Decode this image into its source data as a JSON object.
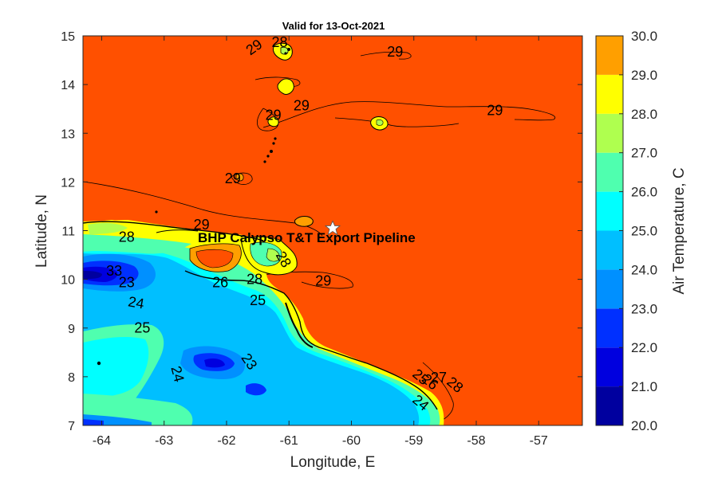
{
  "chart_data": {
    "type": "heatmap",
    "title": "Valid for 13-Oct-2021",
    "xlabel": "Longitude, E",
    "ylabel": "Latitude, N",
    "xlim": [
      -64.3,
      -56.3
    ],
    "ylim": [
      7,
      15
    ],
    "x_ticks": [
      "-64",
      "-63",
      "-62",
      "-61",
      "-60",
      "-59",
      "-58",
      "-57"
    ],
    "y_ticks": [
      "7",
      "8",
      "9",
      "10",
      "11",
      "12",
      "13",
      "14",
      "15"
    ],
    "colorbar": {
      "label": "Air Temperature, C",
      "range": [
        20,
        30
      ],
      "levels": [
        20,
        21,
        22,
        23,
        24,
        25,
        26,
        27,
        28,
        29,
        30
      ],
      "tick_labels": [
        "20.0",
        "21.0",
        "22.0",
        "23.0",
        "24.0",
        "25.0",
        "26.0",
        "27.0",
        "28.0",
        "29.0",
        "30.0"
      ],
      "colors": [
        "#00009f",
        "#0000df",
        "#0030ff",
        "#0090ff",
        "#00bfff",
        "#00ffff",
        "#4fffaf",
        "#afff4f",
        "#ffff00",
        "#ff9f00",
        "#ff5000"
      ]
    },
    "contour_labels": [
      {
        "text": "29",
        "lon": -61.55,
        "lat": 14.75,
        "rot": -35
      },
      {
        "text": "28",
        "lon": -61.15,
        "lat": 14.85,
        "rot": 0
      },
      {
        "text": "29",
        "lon": -59.3,
        "lat": 14.65,
        "rot": 0
      },
      {
        "text": "29",
        "lon": -60.8,
        "lat": 13.55,
        "rot": 0
      },
      {
        "text": "29",
        "lon": -61.25,
        "lat": 13.35,
        "rot": 0
      },
      {
        "text": "29",
        "lon": -57.7,
        "lat": 13.45,
        "rot": 0
      },
      {
        "text": "29",
        "lon": -61.9,
        "lat": 12.05,
        "rot": 0
      },
      {
        "text": "29",
        "lon": -62.4,
        "lat": 11.1,
        "rot": 0
      },
      {
        "text": "28",
        "lon": -63.6,
        "lat": 10.85,
        "rot": 0
      },
      {
        "text": "33",
        "lon": -63.8,
        "lat": 10.15,
        "rot": 0
      },
      {
        "text": "23",
        "lon": -63.6,
        "lat": 9.92,
        "rot": 0
      },
      {
        "text": "24",
        "lon": -63.45,
        "lat": 9.5,
        "rot": 10
      },
      {
        "text": "25",
        "lon": -63.35,
        "lat": 8.98,
        "rot": 0
      },
      {
        "text": "26",
        "lon": -62.1,
        "lat": 9.92,
        "rot": 0
      },
      {
        "text": "28",
        "lon": -61.55,
        "lat": 9.98,
        "rot": 0
      },
      {
        "text": "25",
        "lon": -61.5,
        "lat": 9.55,
        "rot": 0
      },
      {
        "text": "29",
        "lon": -60.45,
        "lat": 9.95,
        "rot": 0
      },
      {
        "text": "28",
        "lon": -61.1,
        "lat": 10.4,
        "rot": 60
      },
      {
        "text": "24",
        "lon": -62.8,
        "lat": 8.05,
        "rot": 75
      },
      {
        "text": "23",
        "lon": -61.65,
        "lat": 8.3,
        "rot": 55
      },
      {
        "text": "25",
        "lon": -58.9,
        "lat": 7.98,
        "rot": 40
      },
      {
        "text": "26",
        "lon": -58.75,
        "lat": 7.88,
        "rot": 40
      },
      {
        "text": "27",
        "lon": -58.6,
        "lat": 7.96,
        "rot": 0
      },
      {
        "text": "28",
        "lon": -58.35,
        "lat": 7.82,
        "rot": 40
      },
      {
        "text": "24",
        "lon": -58.9,
        "lat": 7.45,
        "rot": 40
      }
    ]
  },
  "annotation": {
    "label": "BHP Calypso T&T Export Pipeline",
    "marker_lon": -60.3,
    "marker_lat": 11.05,
    "marker": "white-star"
  }
}
